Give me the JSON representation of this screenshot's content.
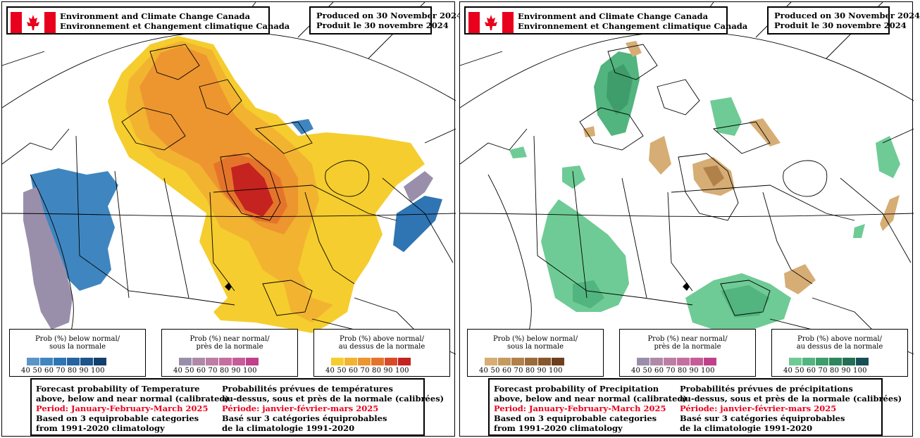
{
  "header": {
    "org_en": "Environment and Climate Change Canada",
    "org_fr": "Environnement et Changement climatique Canada",
    "produced_en": "Produced on 30 November 2024",
    "produced_fr": "Produit le 30 novembre 2024"
  },
  "temperature": {
    "legend_below": {
      "title": "Prob (%) below normal/",
      "title2": "sous la normale",
      "values": "40 50 60 70 80 90 100",
      "colors": [
        "#5b95c7",
        "#3f86c0",
        "#2f74b3",
        "#2564a0",
        "#1c548c",
        "#123f6c"
      ]
    },
    "legend_near": {
      "title": "Prob (%) near normal/",
      "title2": "près de la normale",
      "values": "40 50 60 70 80 90 100",
      "colors": [
        "#9a8fab",
        "#ae8aa6",
        "#bc7fa4",
        "#c56ea0",
        "#c65c98",
        "#c0408a"
      ]
    },
    "legend_above": {
      "title": "Prob (%) above normal/",
      "title2": "au dessus de la normale",
      "values": "40 50 60 70 80 90 100",
      "colors": [
        "#f5cd2e",
        "#f2b330",
        "#ed952f",
        "#e5742b",
        "#d94a26",
        "#c4231f"
      ]
    },
    "info_en": [
      "Forecast probability of Temperature",
      "above, below and near normal (calibrated)",
      "Period: January-February-March 2025",
      "Based on 3 equiprobable categories",
      " from 1991-2020 climatology"
    ],
    "info_fr": [
      "Probabilités prévues de températures",
      "au-dessus, sous et près de la normale (calibrées)",
      "Période: janvier-février-mars 2025",
      "Basé sur 3 catégories équiprobables",
      "de la climatologie 1991-2020"
    ]
  },
  "precipitation": {
    "legend_below": {
      "title": "Prob (%) below normal/",
      "title2": "sous la normale",
      "values": "40 50 60 70 80 90 100",
      "colors": [
        "#d6ad74",
        "#c59a5f",
        "#b08149",
        "#9b6b3a",
        "#87562c",
        "#6e4020"
      ]
    },
    "legend_near": {
      "title": "Prob (%) near normal/",
      "title2": "près de la normale",
      "values": "40 50 60 70 80 90 100",
      "colors": [
        "#9a8fab",
        "#ae8aa6",
        "#bc7fa4",
        "#c56ea0",
        "#c65c98",
        "#c0408a"
      ]
    },
    "legend_above": {
      "title": "Prob (%) above normal/",
      "title2": "au dessus de la normale",
      "values": "40 50 60 70 80 90 100",
      "colors": [
        "#6fcb95",
        "#52b47e",
        "#3f9d6c",
        "#2e865d",
        "#226f52",
        "#174f57"
      ]
    },
    "info_en": [
      "Forecast probability of Precipitation",
      "above, below and near normal (calibrated)",
      "Period: January-February-March 2025",
      "Based on 3 equiprobable categories",
      " from 1991-2020 climatology"
    ],
    "info_fr": [
      "Probabilités prévues de précipitations",
      "au-dessus, sous et près de la normale (calibrées)",
      "Période: janvier-février-mars 2025",
      "Basé sur 3 catégories équiprobables",
      "de la climatologie 1991-2020"
    ]
  }
}
